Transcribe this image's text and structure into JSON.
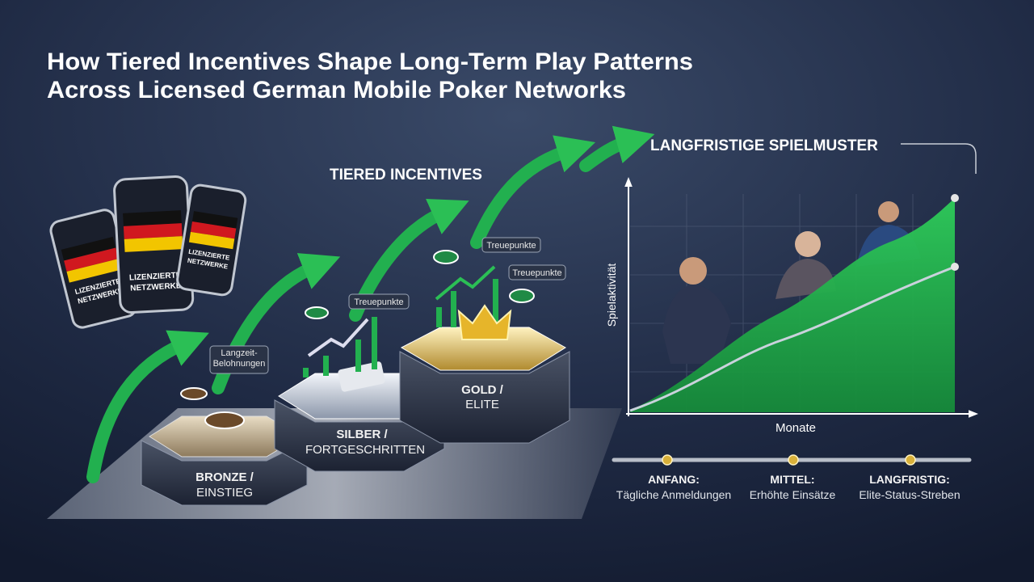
{
  "title": {
    "lines": [
      "How Tiered Incentives Shape Long-Term Play Patterns",
      "Across Licensed German Mobile Poker Networks"
    ]
  },
  "phones": {
    "label": [
      "LIZENZIERTE",
      "NETZWERKE"
    ]
  },
  "incentives": {
    "heading": "TIERED INCENTIVES",
    "tiers": [
      [
        "BRONZE /",
        "EINSTIEG"
      ],
      [
        "SILBER /",
        "FORTGESCHRITTEN"
      ],
      [
        "GOLD /",
        "ELITE"
      ]
    ],
    "tags": [
      [
        "Langzeit-",
        "Belohnungen"
      ],
      [
        "Treuepunkte"
      ],
      [
        "Treuepunkte"
      ],
      [
        "Treuepunkte"
      ]
    ]
  },
  "chart": {
    "heading": "LANGFRISTIGE SPIELMUSTER",
    "y_label": "Spielaktivität",
    "x_label": "Monate"
  },
  "timeline": [
    {
      "stage": "ANFANG:",
      "text": "Tägliche Anmeldungen"
    },
    {
      "stage": "MITTEL:",
      "text": "Erhöhte Einsätze"
    },
    {
      "stage": "LANGFRISTIG:",
      "text": "Elite-Status-Streben"
    }
  ]
}
